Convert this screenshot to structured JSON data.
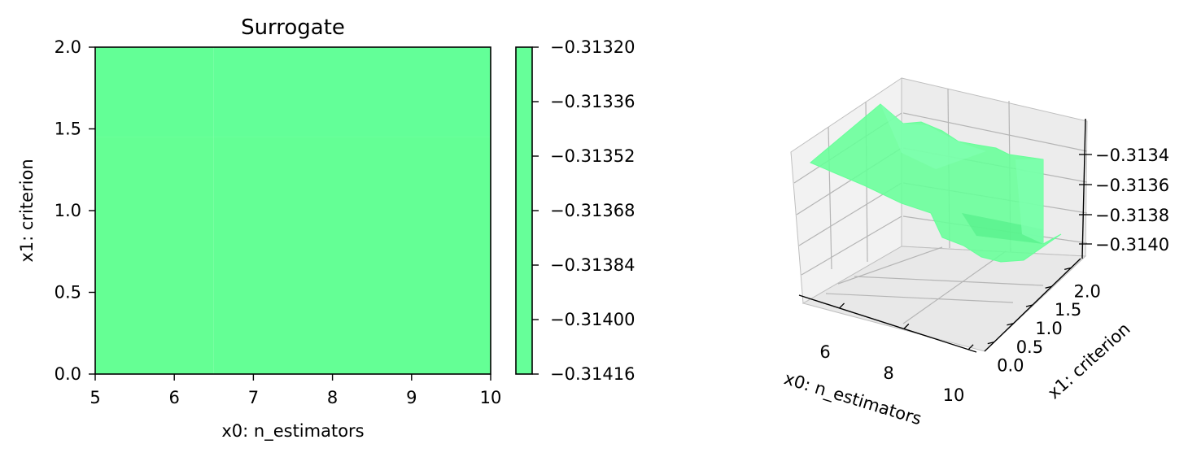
{
  "chart_data": [
    {
      "type": "heatmap",
      "title": "Surrogate",
      "xlabel": "x0: n_estimators",
      "ylabel": "x1: criterion",
      "xlim": [
        5,
        10
      ],
      "ylim": [
        0,
        2
      ],
      "xticks": [
        "5",
        "6",
        "7",
        "8",
        "9",
        "10"
      ],
      "yticks": [
        "0.0",
        "0.5",
        "1.0",
        "1.5",
        "2.0"
      ],
      "cells": [
        {
          "x0": [
            5,
            6.5
          ],
          "x1": [
            0,
            1.45
          ],
          "value": -0.31395
        },
        {
          "x0": [
            6.5,
            10
          ],
          "x1": [
            0,
            1.45
          ],
          "value": -0.31385
        },
        {
          "x0": [
            5,
            6.5
          ],
          "x1": [
            1.45,
            2
          ],
          "value": -0.31375
        },
        {
          "x0": [
            6.5,
            10
          ],
          "x1": [
            1.45,
            2
          ],
          "value": -0.3136
        }
      ],
      "colorbar": {
        "range": [
          -0.31416,
          -0.3132
        ],
        "ticks": [
          "−0.31320",
          "−0.31336",
          "−0.31352",
          "−0.31368",
          "−0.31384",
          "−0.31400",
          "−0.31416"
        ],
        "color": "#66ff99"
      }
    },
    {
      "type": "surface3d",
      "xlabel": "x0: n_estimators",
      "ylabel": "x1: criterion",
      "xticks": [
        "6",
        "8",
        "10"
      ],
      "yticks": [
        "0.0",
        "0.5",
        "1.0",
        "1.5",
        "2.0"
      ],
      "zticks": [
        "−0.3134",
        "−0.3136",
        "−0.3138",
        "−0.3140"
      ],
      "xlim": [
        5,
        10
      ],
      "ylim": [
        0,
        2
      ],
      "zlim": [
        -0.3141,
        -0.3133
      ],
      "surface_color": "#66ff99"
    }
  ]
}
